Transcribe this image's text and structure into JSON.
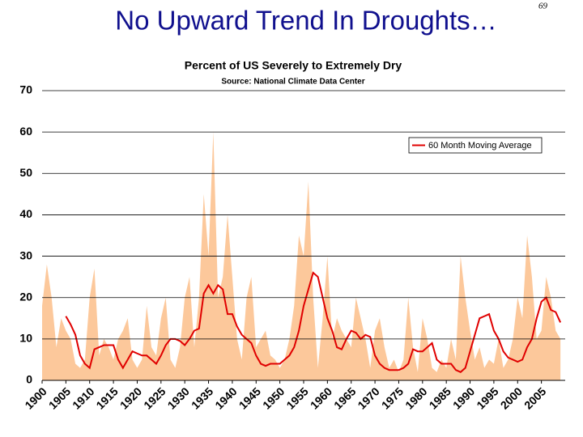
{
  "slide_title": "No Upward Trend In Droughts…",
  "page_number": "69",
  "chart_data": {
    "type": "area",
    "title": "Percent of US Severely to Extremely Dry",
    "subtitle": "Source:  National Climate Data Center",
    "xlim": [
      1900,
      2010
    ],
    "xticks": [
      1900,
      1905,
      1910,
      1915,
      1920,
      1925,
      1930,
      1935,
      1940,
      1945,
      1950,
      1955,
      1960,
      1965,
      1970,
      1975,
      1980,
      1985,
      1990,
      1995,
      2000,
      2005
    ],
    "ylim": [
      0,
      70
    ],
    "yticks": [
      0,
      10,
      20,
      30,
      40,
      50,
      60,
      70
    ],
    "grid": true,
    "legend": "upper right",
    "series": [
      {
        "color": "#fcc89b",
        "x": [
          1900,
          1901,
          1902,
          1903,
          1904,
          1905,
          1906,
          1907,
          1908,
          1909,
          1910,
          1911,
          1912,
          1913,
          1914,
          1915,
          1916,
          1917,
          1918,
          1919,
          1920,
          1921,
          1922,
          1923,
          1924,
          1925,
          1926,
          1927,
          1928,
          1929,
          1930,
          1931,
          1932,
          1933,
          1934,
          1935,
          1936,
          1937,
          1938,
          1939,
          1940,
          1941,
          1942,
          1943,
          1944,
          1945,
          1946,
          1947,
          1948,
          1949,
          1950,
          1951,
          1952,
          1953,
          1954,
          1955,
          1956,
          1957,
          1958,
          1959,
          1960,
          1961,
          1962,
          1963,
          1964,
          1965,
          1966,
          1967,
          1968,
          1969,
          1970,
          1971,
          1972,
          1973,
          1974,
          1975,
          1976,
          1977,
          1978,
          1979,
          1980,
          1981,
          1982,
          1983,
          1984,
          1985,
          1986,
          1987,
          1988,
          1989,
          1990,
          1991,
          1992,
          1993,
          1994,
          1995,
          1996,
          1997,
          1998,
          1999,
          2000,
          2001,
          2002,
          2003,
          2004,
          2005,
          2006,
          2007,
          2008,
          2009
        ],
        "values": [
          18,
          28,
          20,
          8,
          15,
          12,
          10,
          4,
          3,
          5,
          20,
          27,
          6,
          10,
          8,
          5,
          10,
          12,
          15,
          5,
          3,
          5,
          18,
          8,
          6,
          15,
          20,
          5,
          3,
          8,
          20,
          25,
          8,
          20,
          45,
          30,
          60,
          20,
          25,
          40,
          25,
          10,
          5,
          20,
          25,
          8,
          10,
          12,
          6,
          5,
          3,
          5,
          10,
          18,
          35,
          30,
          48,
          20,
          3,
          15,
          30,
          10,
          15,
          12,
          10,
          8,
          20,
          15,
          10,
          3,
          12,
          15,
          8,
          3,
          5,
          2,
          5,
          20,
          8,
          2,
          15,
          10,
          3,
          2,
          5,
          3,
          10,
          5,
          30,
          20,
          12,
          5,
          8,
          3,
          5,
          4,
          10,
          3,
          5,
          10,
          20,
          15,
          35,
          25,
          10,
          12,
          25,
          20,
          12,
          10
        ]
      },
      {
        "name": "60 Month Moving Average",
        "color": "#e00000",
        "x": [
          1905,
          1906,
          1907,
          1908,
          1909,
          1910,
          1911,
          1912,
          1913,
          1914,
          1915,
          1916,
          1917,
          1918,
          1919,
          1920,
          1921,
          1922,
          1923,
          1924,
          1925,
          1926,
          1927,
          1928,
          1929,
          1930,
          1931,
          1932,
          1933,
          1934,
          1935,
          1936,
          1937,
          1938,
          1939,
          1940,
          1941,
          1942,
          1943,
          1944,
          1945,
          1946,
          1947,
          1948,
          1949,
          1950,
          1951,
          1952,
          1953,
          1954,
          1955,
          1956,
          1957,
          1958,
          1959,
          1960,
          1961,
          1962,
          1963,
          1964,
          1965,
          1966,
          1967,
          1968,
          1969,
          1970,
          1971,
          1972,
          1973,
          1974,
          1975,
          1976,
          1977,
          1978,
          1979,
          1980,
          1981,
          1982,
          1983,
          1984,
          1985,
          1986,
          1987,
          1988,
          1989,
          1990,
          1991,
          1992,
          1993,
          1994,
          1995,
          1996,
          1997,
          1998,
          1999,
          2000,
          2001,
          2002,
          2003,
          2004,
          2005,
          2006,
          2007,
          2008,
          2009
        ],
        "values": [
          15.5,
          13.5,
          11,
          6,
          4,
          3,
          7.5,
          8,
          8.5,
          8.5,
          8.5,
          5,
          3,
          5,
          7,
          6.5,
          6,
          6,
          5,
          4,
          6,
          8.5,
          10,
          10,
          9.5,
          8.5,
          10,
          12,
          12.5,
          21,
          23,
          21,
          23,
          22,
          16,
          16,
          13,
          11,
          10,
          9,
          6,
          4,
          3.5,
          4,
          4,
          4,
          5,
          6,
          8,
          12,
          18,
          22,
          26,
          25,
          20,
          15,
          12,
          8,
          7.5,
          10,
          12,
          11.5,
          10,
          11,
          10.5,
          6,
          4,
          3,
          2.5,
          2.5,
          2.5,
          3,
          4,
          7.5,
          7,
          7,
          8,
          9,
          5,
          4,
          4,
          4,
          2.5,
          2,
          3,
          7,
          11,
          15,
          15.5,
          16,
          12,
          10,
          7,
          5.5,
          5,
          4.5,
          5,
          8,
          10,
          15,
          19,
          20,
          17,
          16.5,
          14
        ]
      }
    ]
  }
}
